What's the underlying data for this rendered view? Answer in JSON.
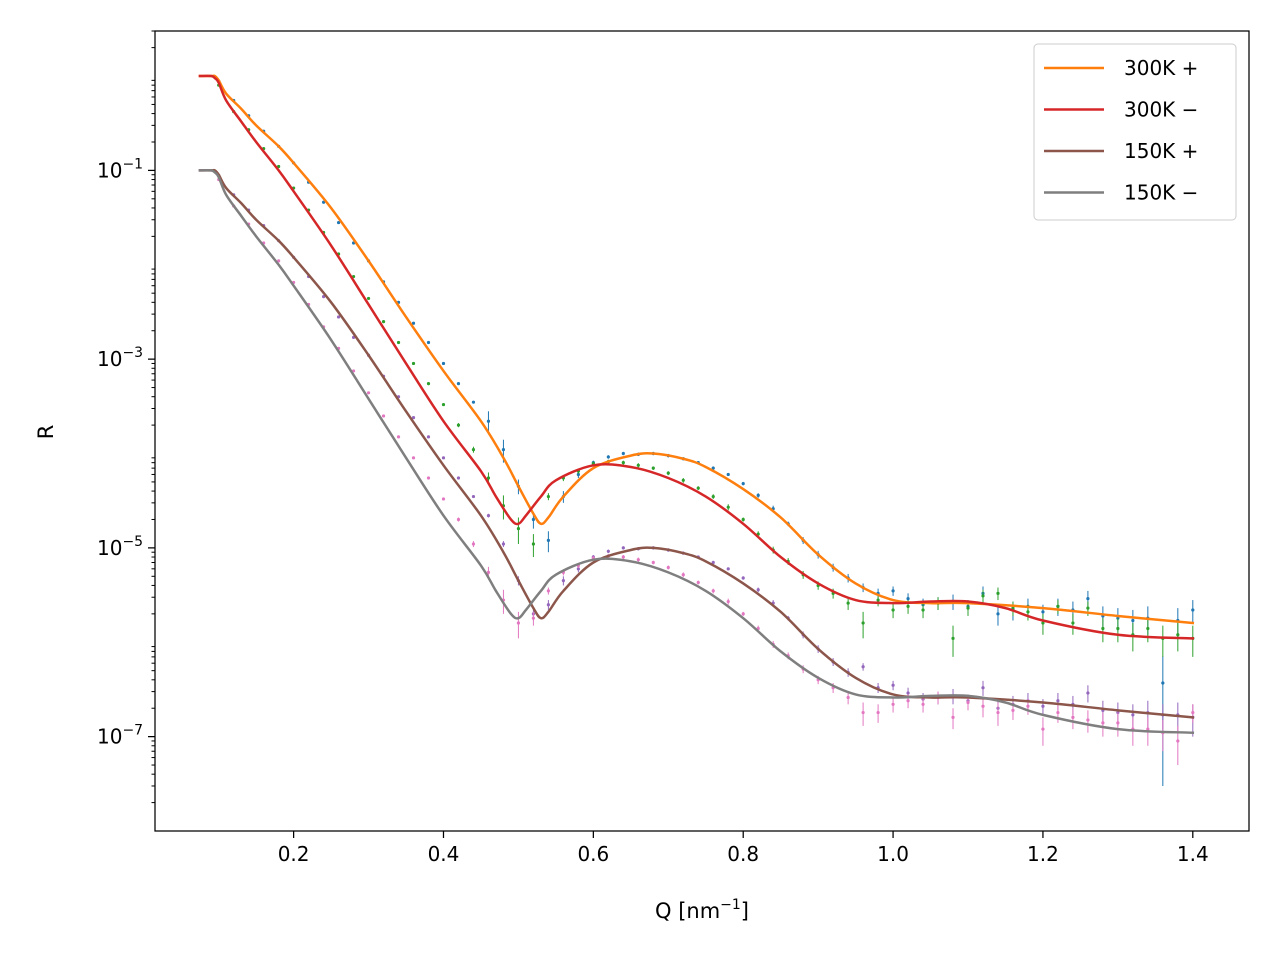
{
  "chart_data": {
    "type": "line",
    "title": "",
    "xlabel": "Q [nm",
    "xlabel_sup": "−1",
    "xlabel_end": "]",
    "ylabel": "R",
    "yscale": "log",
    "xlim": [
      0.015,
      1.475
    ],
    "ylim": [
      1e-08,
      3.0
    ],
    "x_ticks": [
      0.2,
      0.4,
      0.6,
      0.8,
      1.0,
      1.2,
      1.4
    ],
    "x_tick_labels": [
      "0.2",
      "0.4",
      "0.6",
      "0.8",
      "1.0",
      "1.2",
      "1.4"
    ],
    "y_ticks": [
      1e-07,
      1e-05,
      0.001,
      0.1
    ],
    "y_tick_base": "10",
    "y_tick_exponents": [
      "−7",
      "−5",
      "−3",
      "−1"
    ],
    "grid": false,
    "legend_position": "top-right",
    "series": [
      {
        "name": "300K +",
        "color": "#ff7f0e",
        "x": [
          0.075,
          0.09,
          0.095,
          0.1,
          0.11,
          0.13,
          0.15,
          0.18,
          0.2,
          0.25,
          0.3,
          0.35,
          0.4,
          0.45,
          0.48,
          0.5,
          0.52,
          0.53,
          0.54,
          0.56,
          0.6,
          0.65,
          0.68,
          0.72,
          0.75,
          0.8,
          0.85,
          0.9,
          0.95,
          1.0,
          1.05,
          1.1,
          1.2,
          1.3,
          1.4
        ],
        "y": [
          1.0,
          1.0,
          1.0,
          0.9,
          0.65,
          0.45,
          0.3,
          0.18,
          0.12,
          0.04,
          0.011,
          0.0028,
          0.00075,
          0.00022,
          9e-05,
          4.5e-05,
          2.3e-05,
          1.8e-05,
          2.1e-05,
          3.5e-05,
          7e-05,
          9.5e-05,
          0.0001,
          8.8e-05,
          7.2e-05,
          4.2e-05,
          2.1e-05,
          8.5e-06,
          4.2e-06,
          2.8e-06,
          2.6e-06,
          2.6e-06,
          2.3e-06,
          1.9e-06,
          1.6e-06
        ]
      },
      {
        "name": "300K −",
        "color": "#d62728",
        "x": [
          0.075,
          0.09,
          0.095,
          0.1,
          0.11,
          0.13,
          0.15,
          0.18,
          0.2,
          0.25,
          0.3,
          0.35,
          0.4,
          0.45,
          0.47,
          0.49,
          0.5,
          0.51,
          0.53,
          0.55,
          0.6,
          0.65,
          0.7,
          0.75,
          0.8,
          0.85,
          0.9,
          0.95,
          1.0,
          1.05,
          1.1,
          1.15,
          1.2,
          1.3,
          1.4
        ],
        "y": [
          1.0,
          1.0,
          0.95,
          0.85,
          0.55,
          0.33,
          0.2,
          0.1,
          0.06,
          0.016,
          0.0038,
          0.0009,
          0.00022,
          6.5e-05,
          3.5e-05,
          2e-05,
          1.8e-05,
          2.2e-05,
          3.5e-05,
          5.2e-05,
          7.5e-05,
          7.2e-05,
          5.5e-05,
          3.5e-05,
          1.8e-05,
          8e-06,
          4.2e-06,
          2.8e-06,
          2.6e-06,
          2.7e-06,
          2.7e-06,
          2.3e-06,
          1.7e-06,
          1.2e-06,
          1.1e-06
        ]
      },
      {
        "name": "150K +",
        "color": "#8c564b",
        "x": [
          0.075,
          0.09,
          0.095,
          0.1,
          0.11,
          0.13,
          0.15,
          0.18,
          0.2,
          0.25,
          0.3,
          0.35,
          0.4,
          0.45,
          0.48,
          0.5,
          0.52,
          0.53,
          0.54,
          0.56,
          0.6,
          0.65,
          0.68,
          0.72,
          0.75,
          0.8,
          0.85,
          0.9,
          0.95,
          1.0,
          1.05,
          1.1,
          1.2,
          1.3,
          1.4
        ],
        "y": [
          0.1,
          0.1,
          0.1,
          0.09,
          0.065,
          0.045,
          0.03,
          0.018,
          0.012,
          0.004,
          0.0011,
          0.00028,
          7.5e-05,
          2.2e-05,
          9e-06,
          4.5e-06,
          2.3e-06,
          1.8e-06,
          2.1e-06,
          3.5e-06,
          7e-06,
          9.5e-06,
          1e-05,
          8.8e-06,
          7.2e-06,
          4.2e-06,
          2.1e-06,
          8.5e-07,
          4.2e-07,
          2.8e-07,
          2.6e-07,
          2.6e-07,
          2.3e-07,
          1.9e-07,
          1.6e-07
        ]
      },
      {
        "name": "150K −",
        "color": "#7f7f7f",
        "x": [
          0.075,
          0.09,
          0.095,
          0.1,
          0.11,
          0.13,
          0.15,
          0.18,
          0.2,
          0.25,
          0.3,
          0.35,
          0.4,
          0.45,
          0.47,
          0.49,
          0.5,
          0.51,
          0.53,
          0.55,
          0.6,
          0.65,
          0.7,
          0.75,
          0.8,
          0.85,
          0.9,
          0.95,
          1.0,
          1.05,
          1.1,
          1.15,
          1.2,
          1.3,
          1.4
        ],
        "y": [
          0.1,
          0.1,
          0.095,
          0.085,
          0.055,
          0.033,
          0.02,
          0.01,
          0.006,
          0.0016,
          0.00038,
          9e-05,
          2.2e-05,
          6.5e-06,
          3.5e-06,
          2e-06,
          1.8e-06,
          2.2e-06,
          3.5e-06,
          5.2e-06,
          7.5e-06,
          7.2e-06,
          5.5e-06,
          3.5e-06,
          1.8e-06,
          8e-07,
          4.2e-07,
          2.8e-07,
          2.6e-07,
          2.7e-07,
          2.7e-07,
          2.3e-07,
          1.7e-07,
          1.2e-07,
          1.1e-07
        ]
      }
    ],
    "data_points": [
      {
        "color": "#1f77b4",
        "x": [
          0.1,
          0.12,
          0.14,
          0.16,
          0.18,
          0.2,
          0.22,
          0.24,
          0.26,
          0.28,
          0.3,
          0.32,
          0.34,
          0.36,
          0.38,
          0.4,
          0.42,
          0.44,
          0.46,
          0.48,
          0.5,
          0.52,
          0.54,
          0.56,
          0.58,
          0.6,
          0.62,
          0.64,
          0.66,
          0.68,
          0.7,
          0.72,
          0.74,
          0.76,
          0.78,
          0.8,
          0.82,
          0.84,
          0.86,
          0.88,
          0.9,
          0.92,
          0.94,
          0.96,
          0.98,
          1.0,
          1.02,
          1.04,
          1.06,
          1.08,
          1.1,
          1.12,
          1.14,
          1.16,
          1.18,
          1.2,
          1.22,
          1.24,
          1.26,
          1.28,
          1.3,
          1.32,
          1.34,
          1.36,
          1.38,
          1.4
        ],
        "y": [
          0.88,
          0.55,
          0.38,
          0.26,
          0.18,
          0.12,
          0.075,
          0.046,
          0.028,
          0.017,
          0.011,
          0.0066,
          0.004,
          0.0024,
          0.0015,
          0.0009,
          0.00055,
          0.00035,
          0.00022,
          0.00011,
          4.5e-05,
          2e-05,
          1.2e-05,
          3.5e-05,
          6e-05,
          8e-05,
          9.2e-05,
          0.0001,
          9.8e-05,
          0.0001,
          9.5e-05,
          8.8e-05,
          8e-05,
          7e-05,
          6e-05,
          4.8e-05,
          3.6e-05,
          2.6e-05,
          1.8e-05,
          1.2e-05,
          8.5e-06,
          6.2e-06,
          4.8e-06,
          3.8e-06,
          3.3e-06,
          3.5e-06,
          2.9e-06,
          2.5e-06,
          2.6e-06,
          2.7e-06,
          2.4e-06,
          3.3e-06,
          2e-06,
          2.2e-06,
          2.4e-06,
          2.1e-06,
          2.4e-06,
          2.2e-06,
          2.9e-06,
          1.9e-06,
          1.8e-06,
          1.7e-06,
          1.8e-06,
          3.7e-07,
          1.7e-06,
          2.2e-06
        ],
        "err": [
          0.03,
          0.02,
          0.01,
          0.005,
          0.004,
          0.003,
          0.002,
          0.001,
          0.0005,
          0.0003,
          0.0002,
          0.0001,
          6e-05,
          4e-05,
          3e-05,
          2e-05,
          1.5e-05,
          1e-05,
          6e-05,
          3e-05,
          8e-06,
          4e-06,
          3e-06,
          5e-06,
          5e-06,
          4e-06,
          4e-06,
          4e-06,
          4e-06,
          4e-06,
          4e-06,
          3e-06,
          3e-06,
          3e-06,
          2e-06,
          2e-06,
          2e-06,
          2e-06,
          1e-06,
          1e-06,
          8e-07,
          6e-07,
          5e-07,
          4e-07,
          4e-07,
          4e-07,
          4e-07,
          4e-07,
          4e-07,
          5e-07,
          4e-07,
          6e-07,
          5e-07,
          5e-07,
          5e-07,
          4e-07,
          5e-07,
          5e-07,
          6e-07,
          5e-07,
          5e-07,
          5e-07,
          6e-07,
          3.4e-07,
          6e-07,
          6e-07
        ]
      },
      {
        "color": "#2ca02c",
        "x": [
          0.1,
          0.12,
          0.14,
          0.16,
          0.18,
          0.2,
          0.22,
          0.24,
          0.26,
          0.28,
          0.3,
          0.32,
          0.34,
          0.36,
          0.38,
          0.4,
          0.42,
          0.44,
          0.46,
          0.48,
          0.5,
          0.52,
          0.54,
          0.56,
          0.58,
          0.6,
          0.62,
          0.64,
          0.66,
          0.68,
          0.7,
          0.72,
          0.74,
          0.76,
          0.78,
          0.8,
          0.82,
          0.84,
          0.86,
          0.88,
          0.9,
          0.92,
          0.94,
          0.96,
          0.98,
          1.0,
          1.02,
          1.04,
          1.06,
          1.08,
          1.1,
          1.12,
          1.14,
          1.16,
          1.18,
          1.2,
          1.22,
          1.24,
          1.26,
          1.28,
          1.3,
          1.32,
          1.34,
          1.36,
          1.38,
          1.4
        ],
        "y": [
          0.8,
          0.42,
          0.27,
          0.17,
          0.11,
          0.065,
          0.038,
          0.022,
          0.013,
          0.0075,
          0.0044,
          0.0025,
          0.0015,
          0.0009,
          0.00055,
          0.00033,
          0.0002,
          0.00011,
          5.5e-05,
          2.8e-05,
          1.6e-05,
          1.1e-05,
          3.5e-05,
          5.5e-05,
          6.5e-05,
          7.8e-05,
          8.2e-05,
          8e-05,
          7.5e-05,
          7e-05,
          6.2e-05,
          5.2e-05,
          4.3e-05,
          3.5e-05,
          2.7e-05,
          2e-05,
          1.4e-05,
          9.5e-06,
          7.2e-06,
          5.2e-06,
          4e-06,
          3.3e-06,
          2.6e-06,
          1.6e-06,
          2.8e-06,
          2.2e-06,
          2.4e-06,
          2.2e-06,
          2.6e-06,
          1.1e-06,
          2.3e-06,
          3.1e-06,
          3.3e-06,
          2.3e-06,
          2.1e-06,
          1.6e-06,
          2.4e-06,
          1.6e-06,
          2.3e-06,
          1.4e-06,
          1.4e-06,
          1.2e-06,
          1.4e-06,
          1.1e-06,
          1.2e-06,
          1.1e-06
        ],
        "err": [
          0.02,
          0.01,
          0.007,
          0.004,
          0.003,
          0.002,
          0.001,
          0.0005,
          0.0003,
          0.0002,
          0.0001,
          6e-05,
          4e-05,
          2e-05,
          2e-05,
          1e-05,
          1e-05,
          8e-06,
          8e-06,
          8e-06,
          5e-06,
          3e-06,
          3e-06,
          4e-06,
          4e-06,
          4e-06,
          4e-06,
          4e-06,
          4e-06,
          3e-06,
          3e-06,
          3e-06,
          2e-06,
          2e-06,
          2e-06,
          1e-06,
          1e-06,
          8e-07,
          6e-07,
          5e-07,
          4e-07,
          4e-07,
          4e-07,
          5e-07,
          4e-07,
          4e-07,
          4e-07,
          4e-07,
          4e-07,
          4e-07,
          4e-07,
          5e-07,
          5e-07,
          4e-07,
          4e-07,
          4e-07,
          4e-07,
          4e-07,
          4e-07,
          4e-07,
          4e-07,
          4e-07,
          4e-07,
          4e-07,
          4e-07,
          4e-07
        ]
      },
      {
        "color": "#9467bd",
        "x": [
          0.1,
          0.12,
          0.14,
          0.16,
          0.18,
          0.2,
          0.22,
          0.24,
          0.26,
          0.28,
          0.3,
          0.32,
          0.34,
          0.36,
          0.38,
          0.4,
          0.42,
          0.44,
          0.46,
          0.48,
          0.5,
          0.52,
          0.54,
          0.56,
          0.58,
          0.6,
          0.62,
          0.64,
          0.66,
          0.68,
          0.7,
          0.72,
          0.74,
          0.76,
          0.78,
          0.8,
          0.82,
          0.84,
          0.86,
          0.88,
          0.9,
          0.92,
          0.94,
          0.96,
          0.98,
          1.0,
          1.02,
          1.04,
          1.06,
          1.08,
          1.1,
          1.12,
          1.14,
          1.16,
          1.18,
          1.2,
          1.22,
          1.24,
          1.26,
          1.28,
          1.3,
          1.32,
          1.34,
          1.36,
          1.38,
          1.4
        ],
        "y": [
          0.088,
          0.055,
          0.038,
          0.026,
          0.018,
          0.012,
          0.0075,
          0.0046,
          0.0028,
          0.0017,
          0.0011,
          0.00066,
          0.0004,
          0.00024,
          0.00015,
          9e-05,
          5.5e-05,
          3.5e-05,
          2.2e-05,
          1.1e-05,
          4.5e-06,
          2e-06,
          2.5e-06,
          4.5e-06,
          6e-06,
          8e-06,
          9.2e-06,
          1e-05,
          9.8e-06,
          1e-05,
          9.5e-06,
          8.8e-06,
          8e-06,
          7e-06,
          6e-06,
          4.8e-06,
          3.6e-06,
          2.6e-06,
          1.8e-06,
          1.2e-06,
          8.5e-07,
          6.2e-07,
          4.8e-07,
          5.5e-07,
          3.3e-07,
          3.5e-07,
          2.9e-07,
          2.5e-07,
          2.6e-07,
          2.7e-07,
          2.4e-07,
          3.3e-07,
          2e-07,
          2.2e-07,
          2.4e-07,
          2.1e-07,
          2.4e-07,
          2.2e-07,
          2.9e-07,
          1.9e-07,
          1.8e-07,
          1.7e-07,
          1.8e-07,
          1.7e-07,
          1.7e-07,
          1.6e-07
        ],
        "err": [
          0.003,
          0.002,
          0.001,
          0.0005,
          0.0004,
          0.0003,
          0.0002,
          0.0001,
          5e-05,
          3e-05,
          2e-05,
          1e-05,
          6e-06,
          4e-06,
          3e-06,
          2e-06,
          1.5e-06,
          1e-06,
          1e-06,
          8e-07,
          5e-07,
          3e-07,
          3e-07,
          5e-07,
          5e-07,
          4e-07,
          4e-07,
          4e-07,
          4e-07,
          4e-07,
          4e-07,
          3e-07,
          3e-07,
          3e-07,
          2e-07,
          2e-07,
          2e-07,
          2e-07,
          1e-07,
          1e-07,
          8e-08,
          6e-08,
          5e-08,
          5e-08,
          4e-08,
          4e-08,
          4e-08,
          4e-08,
          4e-08,
          5e-08,
          4e-08,
          6e-08,
          5e-08,
          5e-08,
          5e-08,
          4e-08,
          5e-08,
          5e-08,
          6e-08,
          5e-08,
          5e-08,
          5e-08,
          6e-08,
          5e-08,
          6e-08,
          6e-08
        ]
      },
      {
        "color": "#e377c2",
        "x": [
          0.1,
          0.12,
          0.14,
          0.16,
          0.18,
          0.2,
          0.22,
          0.24,
          0.26,
          0.28,
          0.3,
          0.32,
          0.34,
          0.36,
          0.38,
          0.4,
          0.42,
          0.44,
          0.46,
          0.48,
          0.5,
          0.52,
          0.54,
          0.56,
          0.58,
          0.6,
          0.62,
          0.64,
          0.66,
          0.68,
          0.7,
          0.72,
          0.74,
          0.76,
          0.78,
          0.8,
          0.82,
          0.84,
          0.86,
          0.88,
          0.9,
          0.92,
          0.94,
          0.96,
          0.98,
          1.0,
          1.02,
          1.04,
          1.06,
          1.08,
          1.1,
          1.12,
          1.14,
          1.16,
          1.18,
          1.2,
          1.22,
          1.24,
          1.26,
          1.28,
          1.3,
          1.32,
          1.34,
          1.36,
          1.38,
          1.4
        ],
        "y": [
          0.08,
          0.042,
          0.027,
          0.017,
          0.011,
          0.0065,
          0.0038,
          0.0022,
          0.0013,
          0.00075,
          0.00044,
          0.00025,
          0.00015,
          9e-05,
          5.5e-05,
          3.3e-05,
          2e-05,
          1.1e-05,
          5.5e-06,
          2.8e-06,
          1.6e-06,
          1.8e-06,
          3.5e-06,
          5.5e-06,
          6.5e-06,
          7.8e-06,
          8.2e-06,
          8e-06,
          7.5e-06,
          7e-06,
          6.2e-06,
          5.2e-06,
          4.3e-06,
          3.5e-06,
          2.7e-06,
          2e-06,
          1.4e-06,
          9.5e-07,
          7.2e-07,
          5.2e-07,
          4e-07,
          3.3e-07,
          2.6e-07,
          1.8e-07,
          1.8e-07,
          2.2e-07,
          2.4e-07,
          2.2e-07,
          2.6e-07,
          1.6e-07,
          2.3e-07,
          2.1e-07,
          1.8e-07,
          1.9e-07,
          2.1e-07,
          1.2e-07,
          1.8e-07,
          1.6e-07,
          1.5e-07,
          1.4e-07,
          1.4e-07,
          1.2e-07,
          1.2e-07,
          1.1e-07,
          9e-08,
          1.8e-07
        ],
        "err": [
          0.002,
          0.001,
          0.0007,
          0.0004,
          0.0003,
          0.0002,
          0.0001,
          5e-05,
          3e-05,
          2e-05,
          1e-05,
          6e-06,
          4e-06,
          2e-06,
          2e-06,
          1e-06,
          1e-06,
          8e-07,
          8e-07,
          8e-07,
          5e-07,
          3e-07,
          3e-07,
          4e-07,
          4e-07,
          4e-07,
          4e-07,
          4e-07,
          4e-07,
          3e-07,
          3e-07,
          3e-07,
          2e-07,
          2e-07,
          2e-07,
          1e-07,
          1e-07,
          8e-08,
          6e-08,
          5e-08,
          4e-08,
          4e-08,
          4e-08,
          5e-08,
          4e-08,
          4e-08,
          4e-08,
          4e-08,
          4e-08,
          4e-08,
          4e-08,
          5e-08,
          5e-08,
          4e-08,
          4e-08,
          4e-08,
          4e-08,
          4e-08,
          4e-08,
          4e-08,
          4e-08,
          4e-08,
          4e-08,
          4e-08,
          4e-08,
          4e-08
        ]
      }
    ]
  }
}
